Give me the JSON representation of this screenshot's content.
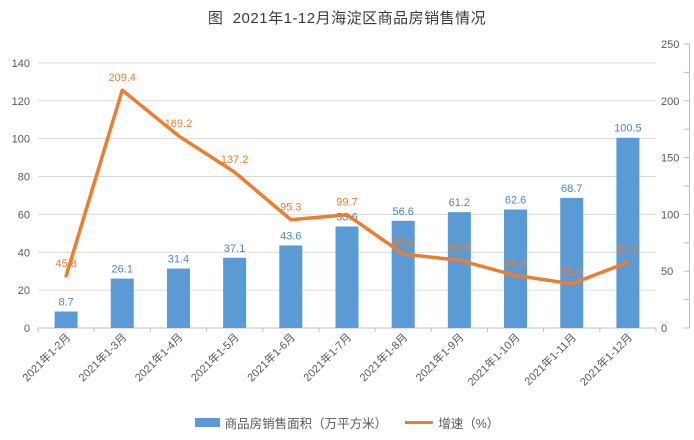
{
  "title": "图  2021年1-12月海淀区商品房销售情况",
  "chart_data": {
    "type": "bar+line combo",
    "title": "图  2021年1-12月海淀区商品房销售情况",
    "categories": [
      "2021年1-2月",
      "2021年1-3月",
      "2021年1-4月",
      "2021年1-5月",
      "2021年1-6月",
      "2021年1-7月",
      "2021年1-8月",
      "2021年1-9月",
      "2021年1-10月",
      "2021年1-11月",
      "2021年1-12月"
    ],
    "series": [
      {
        "name": "商品房销售面积（万平方米）",
        "type": "bar",
        "axis": "left",
        "color": "#5B9BD5",
        "label_color": "#4d85c4",
        "values": [
          8.7,
          26.1,
          31.4,
          37.1,
          43.6,
          53.6,
          56.6,
          61.2,
          62.6,
          68.7,
          100.5
        ]
      },
      {
        "name": "增速（%）",
        "type": "line",
        "axis": "right",
        "color": "#ED7D31",
        "label_color": "#ED7D31",
        "values": [
          45.8,
          209.4,
          169.2,
          137.2,
          95.3,
          99.7,
          65.1,
          59.6,
          46.3,
          38.9,
          57.9
        ]
      }
    ],
    "left_axis": {
      "min": 0,
      "scale_max": 150,
      "ticks": [
        0,
        20,
        40,
        60,
        80,
        100,
        120,
        140
      ]
    },
    "right_axis": {
      "min": 0,
      "scale_max": 250,
      "ticks": [
        0,
        50,
        100,
        150,
        200,
        250
      ],
      "minor_step": 25
    },
    "grid": true,
    "legend_position": "bottom",
    "xlabel": "",
    "ylabel_left": "",
    "ylabel_right": ""
  },
  "colors": {
    "grid": "#dcdcdc",
    "axis_line": "#bfbfbf",
    "axis_text": "#595959",
    "title_text": "#3b3b3b",
    "background": "#ffffff"
  }
}
